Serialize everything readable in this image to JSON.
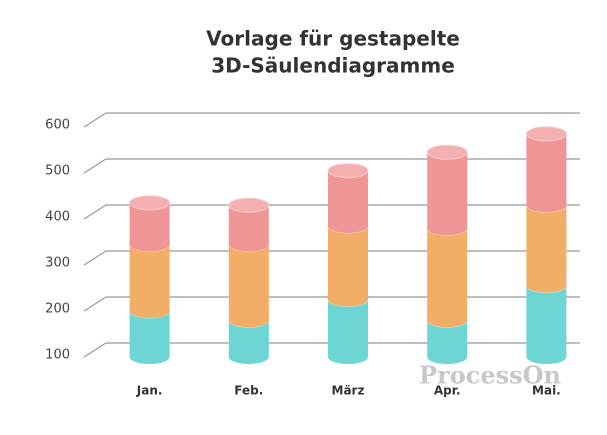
{
  "chart_data": {
    "type": "bar3d_stacked",
    "title": [
      "Vorlage für gestapelte",
      "3D-Säulendiagramme"
    ],
    "categories": [
      "Jan.",
      "Feb.",
      "März",
      "Apr.",
      "Mai."
    ],
    "series": [
      {
        "color": "#6dd5d4",
        "values": [
          100,
          80,
          125,
          80,
          155
        ]
      },
      {
        "color": "#f2ad66",
        "values": [
          145,
          165,
          160,
          200,
          175
        ]
      },
      {
        "color": "#f09595",
        "values": [
          90,
          85,
          120,
          165,
          155
        ]
      }
    ],
    "ylim": [
      100,
      600
    ],
    "yticks": [
      100,
      200,
      300,
      400,
      500,
      600
    ],
    "grid": true,
    "annotation": "ProcessOn"
  }
}
